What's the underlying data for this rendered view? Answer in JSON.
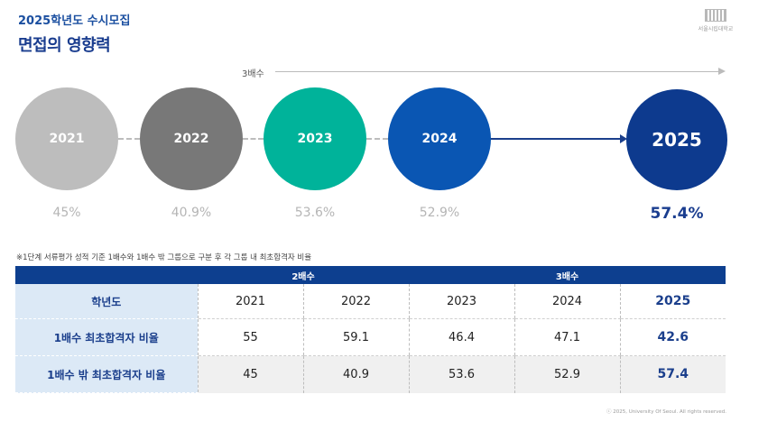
{
  "header": {
    "subtitle": "2025학년도 수시모집",
    "title": "면접의 영향력",
    "logo_text": "서울시립대학교"
  },
  "timeline": {
    "arrow_label": "3배수",
    "circles": [
      {
        "year": "2021",
        "pct": "45%"
      },
      {
        "year": "2022",
        "pct": "40.9%"
      },
      {
        "year": "2023",
        "pct": "53.6%"
      },
      {
        "year": "2024",
        "pct": "52.9%"
      },
      {
        "year": "2025",
        "pct": "57.4%"
      }
    ]
  },
  "colors": {
    "c2021": "#bdbdbd",
    "c2022": "#787878",
    "c2023": "#00b39a",
    "c2024": "#0a56b3",
    "c2025": "#0d3a8e",
    "accent": "#1a3d8f"
  },
  "note": "※1단계 서류평가 성적 기준 1배수와 1배수 밖 그룹으로 구분 후 각 그룹 내 최초합격자 비율",
  "table": {
    "groups": [
      "2배수",
      "3배수"
    ],
    "row_header": "학년도",
    "years": [
      "2021",
      "2022",
      "2023",
      "2024",
      "2025"
    ],
    "rows": [
      {
        "label": "1배수 최초합격자 비율",
        "values": [
          "55",
          "59.1",
          "46.4",
          "47.1",
          "42.6"
        ]
      },
      {
        "label": "1배수 밖 최초합격자 비율",
        "values": [
          "45",
          "40.9",
          "53.6",
          "52.9",
          "57.4"
        ]
      }
    ]
  },
  "footer": {
    "copyright": "ⓒ 2025, University Of Seoul. All rights reserved."
  }
}
